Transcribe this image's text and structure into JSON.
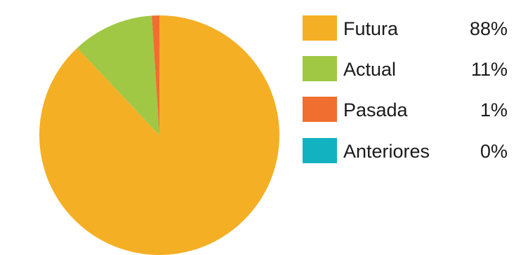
{
  "chart_data": {
    "type": "pie",
    "slices": [
      {
        "label": "Futura",
        "value": 88,
        "display": "88%",
        "color": "#F5AF24"
      },
      {
        "label": "Actual",
        "value": 11,
        "display": "11%",
        "color": "#A0C844"
      },
      {
        "label": "Pasada",
        "value": 1,
        "display": "1%",
        "color": "#F06E30"
      },
      {
        "label": "Anteriores",
        "value": 0,
        "display": "0%",
        "color": "#13B2C0"
      }
    ],
    "start": "12 o'clock",
    "direction": "clockwise",
    "legend_position": "right"
  }
}
